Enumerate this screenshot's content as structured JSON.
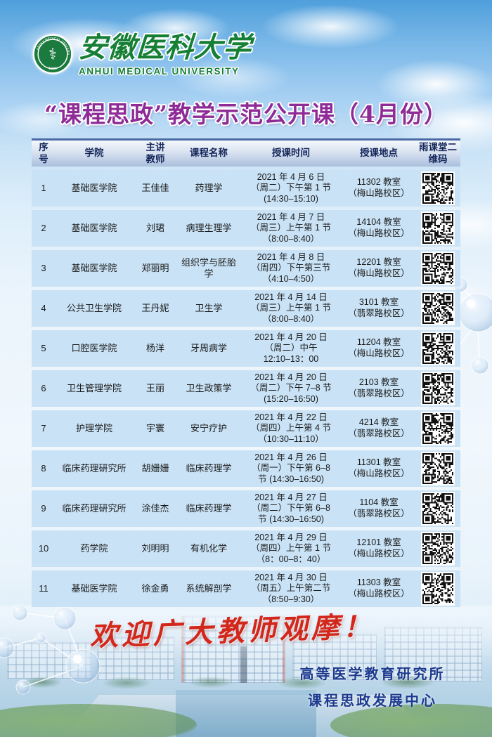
{
  "brand": {
    "name_cn": "安徽医科大学",
    "name_en": "ANHUI MEDICAL UNIVERSITY",
    "seal_year": "1926",
    "seal_text": "ANHUI MEDICAL UNIVERSITY"
  },
  "title": "“课程思政”教学示范公开课（4月份）",
  "table": {
    "headers": [
      "序\n号",
      "学院",
      "主讲\n教师",
      "课程名称",
      "授课时间",
      "授课地点",
      "雨课堂二维码"
    ],
    "rows": [
      {
        "no": "1",
        "college": "基础医学院",
        "teacher": "王佳佳",
        "course": "药理学",
        "time": "2021 年 4 月 6 日\n（周二）下午第 1 节\n(14:30–15:10)",
        "location": "11302 教室\n（梅山路校区）"
      },
      {
        "no": "2",
        "college": "基础医学院",
        "teacher": "刘珺",
        "course": "病理生理学",
        "time": "2021 年 4 月 7 日\n（周三）上午第 1 节\n（8:00–8:40）",
        "location": "14104 教室\n（梅山路校区）"
      },
      {
        "no": "3",
        "college": "基础医学院",
        "teacher": "郑丽明",
        "course": "组织学与胚胎学",
        "time": "2021 年 4 月 8 日\n（周四）下午第三节\n（4:10–4:50）",
        "location": "12201 教室\n（梅山路校区）"
      },
      {
        "no": "4",
        "college": "公共卫生学院",
        "teacher": "王丹妮",
        "course": "卫生学",
        "time": "2021 年 4 月 14 日\n（周三）上午第 1 节\n（8:00–8:40）",
        "location": "3101 教室\n（翡翠路校区）"
      },
      {
        "no": "5",
        "college": "口腔医学院",
        "teacher": "杨洋",
        "course": "牙周病学",
        "time": "2021 年 4 月 20 日\n（周二）中午\n12:10–13：00",
        "location": "11204 教室\n（梅山路校区）"
      },
      {
        "no": "6",
        "college": "卫生管理学院",
        "teacher": "王丽",
        "course": "卫生政策学",
        "time": "2021 年 4 月 20 日\n（周二）下午 7–8 节\n(15:20–16:50)",
        "location": "2103 教室\n（翡翠路校区）"
      },
      {
        "no": "7",
        "college": "护理学院",
        "teacher": "宇寰",
        "course": "安宁疗护",
        "time": "2021 年 4 月 22 日\n（周四）上午第 4 节\n（10:30–11:10）",
        "location": "4214 教室\n（翡翠路校区）"
      },
      {
        "no": "8",
        "college": "临床药理研究所",
        "teacher": "胡姗姗",
        "course": "临床药理学",
        "time": "2021 年 4 月 26 日\n（周一）下午第 6–8\n节 (14:30–16:50)",
        "location": "11301 教室\n（梅山路校区）"
      },
      {
        "no": "9",
        "college": "临床药理研究所",
        "teacher": "涂佳杰",
        "course": "临床药理学",
        "time": "2021 年 4 月 27 日\n（周二）下午第 6–8\n节 (14:30–16:50)",
        "location": "1104 教室\n（翡翠路校区）"
      },
      {
        "no": "10",
        "college": "药学院",
        "teacher": "刘明明",
        "course": "有机化学",
        "time": "2021 年 4 月 29 日\n（周四）上午第 1 节\n（8：00–8：40）",
        "location": "12101 教室\n（梅山路校区）"
      },
      {
        "no": "11",
        "college": "基础医学院",
        "teacher": "徐金勇",
        "course": "系统解剖学",
        "time": "2021 年 4 月 30 日\n（周五）上午第二节\n（8:50–9:30）",
        "location": "11303 教室\n（梅山路校区）"
      }
    ]
  },
  "footer": {
    "welcome": "欢迎广大教师观摩！",
    "org_line1": "高等医学教育研究所",
    "org_line2": "课程思政发展中心"
  },
  "colors": {
    "brand_green": "#157f35",
    "title_purple": "#8e2b96",
    "welcome_red": "#d3271b",
    "signature_navy": "#1c3a8e",
    "row_blue": "#c9e2f5",
    "header_blue": "#aabfdd"
  }
}
